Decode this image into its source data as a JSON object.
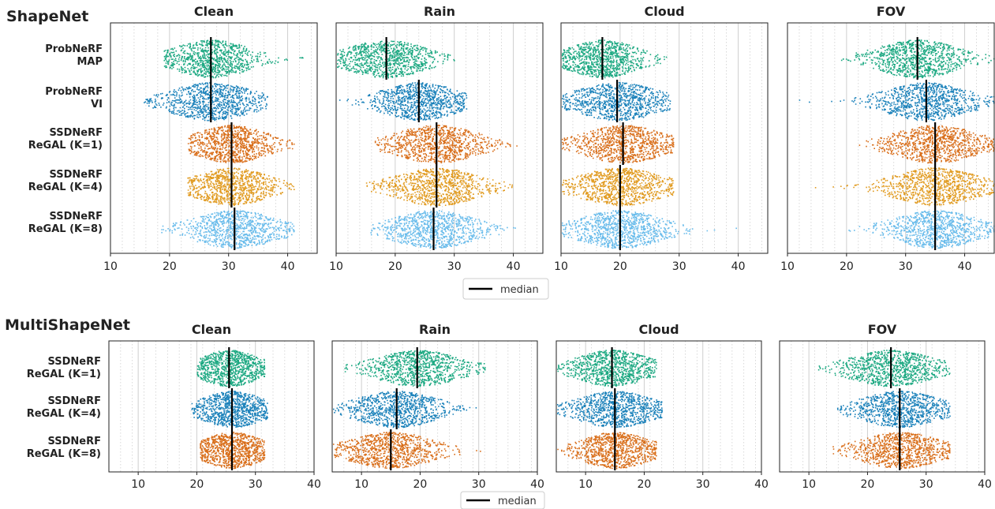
{
  "sections": [
    {
      "title": "ShapeNet",
      "legend_label": "median",
      "categories": [
        [
          "ProbNeRF",
          "MAP"
        ],
        [
          "ProbNeRF",
          "VI"
        ],
        [
          "SSDNeRF",
          "ReGAL (K=1)"
        ],
        [
          "SSDNeRF",
          "ReGAL (K=4)"
        ],
        [
          "SSDNeRF",
          "ReGAL (K=8)"
        ]
      ],
      "series_colors": [
        "#029e73",
        "#0173b2",
        "#d55e00",
        "#de8f05",
        "#56b4e9"
      ]
    },
    {
      "title": "MultiShapeNet",
      "legend_label": "median",
      "categories": [
        [
          "SSDNeRF",
          "ReGAL (K=1)"
        ],
        [
          "SSDNeRF",
          "ReGAL (K=4)"
        ],
        [
          "SSDNeRF",
          "ReGAL (K=8)"
        ]
      ],
      "series_colors": [
        "#029e73",
        "#0173b2",
        "#d55e00"
      ]
    }
  ],
  "chart_data": [
    {
      "type": "scatter",
      "section": "ShapeNet",
      "title": "Clean",
      "xlim": [
        10,
        45
      ],
      "xticks": [
        10,
        20,
        30,
        40
      ],
      "grid": true,
      "median": [
        27,
        27,
        30.5,
        30.5,
        31
      ],
      "spread": [
        [
          19,
          43
        ],
        [
          15.5,
          36.5
        ],
        [
          23,
          41
        ],
        [
          23,
          41
        ],
        [
          18.5,
          41
        ]
      ]
    },
    {
      "type": "scatter",
      "section": "ShapeNet",
      "title": "Rain",
      "xlim": [
        10,
        45
      ],
      "xticks": [
        10,
        20,
        30,
        40
      ],
      "grid": true,
      "median": [
        18.5,
        24,
        27,
        27,
        26.5
      ],
      "spread": [
        [
          10,
          30
        ],
        [
          10.5,
          32
        ],
        [
          16.5,
          40.5
        ],
        [
          15,
          40.5
        ],
        [
          15.5,
          40.5
        ]
      ]
    },
    {
      "type": "scatter",
      "section": "ShapeNet",
      "title": "Cloud",
      "xlim": [
        10,
        45
      ],
      "xticks": [
        10,
        20,
        30,
        40
      ],
      "grid": true,
      "median": [
        17,
        19.5,
        20.5,
        20,
        20
      ],
      "spread": [
        [
          10,
          28
        ],
        [
          10,
          28.5
        ],
        [
          10,
          29
        ],
        [
          10,
          29
        ],
        [
          10,
          40
        ]
      ]
    },
    {
      "type": "scatter",
      "section": "ShapeNet",
      "title": "FOV",
      "xlim": [
        10,
        45
      ],
      "xticks": [
        10,
        20,
        30,
        40
      ],
      "grid": true,
      "median": [
        32,
        33.5,
        35,
        35,
        35
      ],
      "spread": [
        [
          19,
          45
        ],
        [
          10.5,
          45
        ],
        [
          20,
          45
        ],
        [
          14,
          45
        ],
        [
          20,
          45
        ]
      ]
    },
    {
      "type": "scatter",
      "section": "MultiShapeNet",
      "title": "Clean",
      "xlim": [
        5,
        40
      ],
      "xticks": [
        10,
        20,
        30,
        40
      ],
      "grid": true,
      "median": [
        25.5,
        26,
        26
      ],
      "spread": [
        [
          20,
          31.5
        ],
        [
          19,
          32
        ],
        [
          20.5,
          31.5
        ]
      ]
    },
    {
      "type": "scatter",
      "section": "MultiShapeNet",
      "title": "Rain",
      "xlim": [
        5,
        40
      ],
      "xticks": [
        10,
        20,
        30,
        40
      ],
      "grid": true,
      "median": [
        19.5,
        16,
        15
      ],
      "spread": [
        [
          5,
          31
        ],
        [
          5,
          31
        ],
        [
          5,
          31
        ]
      ]
    },
    {
      "type": "scatter",
      "section": "MultiShapeNet",
      "title": "Cloud",
      "xlim": [
        5,
        40
      ],
      "xticks": [
        10,
        20,
        30,
        40
      ],
      "grid": true,
      "median": [
        14.5,
        15,
        15
      ],
      "spread": [
        [
          5,
          22
        ],
        [
          5,
          23
        ],
        [
          5,
          22
        ]
      ]
    },
    {
      "type": "scatter",
      "section": "MultiShapeNet",
      "title": "FOV",
      "xlim": [
        5,
        40
      ],
      "xticks": [
        10,
        20,
        30,
        40
      ],
      "grid": true,
      "median": [
        24,
        25.5,
        25.5
      ],
      "spread": [
        [
          11.5,
          34
        ],
        [
          14.5,
          34
        ],
        [
          14,
          34
        ]
      ]
    }
  ]
}
